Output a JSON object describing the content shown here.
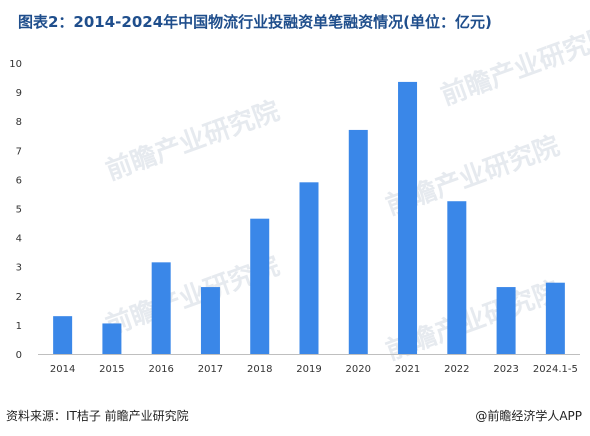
{
  "title": "图表2：2014-2024年中国物流行业投融资单笔融资情况(单位：亿元)",
  "watermark": "前瞻产业研究院",
  "footer": {
    "source": "资料来源：IT桔子 前瞻产业研究院",
    "brand": "@前瞻经济学人APP"
  },
  "colors": {
    "bar": "#3a87e8",
    "title": "#1f4e8c"
  },
  "chart_data": {
    "type": "bar",
    "categories": [
      "2014",
      "2015",
      "2016",
      "2017",
      "2018",
      "2019",
      "2020",
      "2021",
      "2022",
      "2023",
      "2024.1-5"
    ],
    "values": [
      1.3,
      1.05,
      3.15,
      2.3,
      4.65,
      5.9,
      7.7,
      9.35,
      5.25,
      2.3,
      2.45
    ],
    "ylim": [
      0,
      10
    ],
    "yticks": [
      0,
      1,
      2,
      3,
      4,
      5,
      6,
      7,
      8,
      9,
      10
    ],
    "grid": false
  }
}
